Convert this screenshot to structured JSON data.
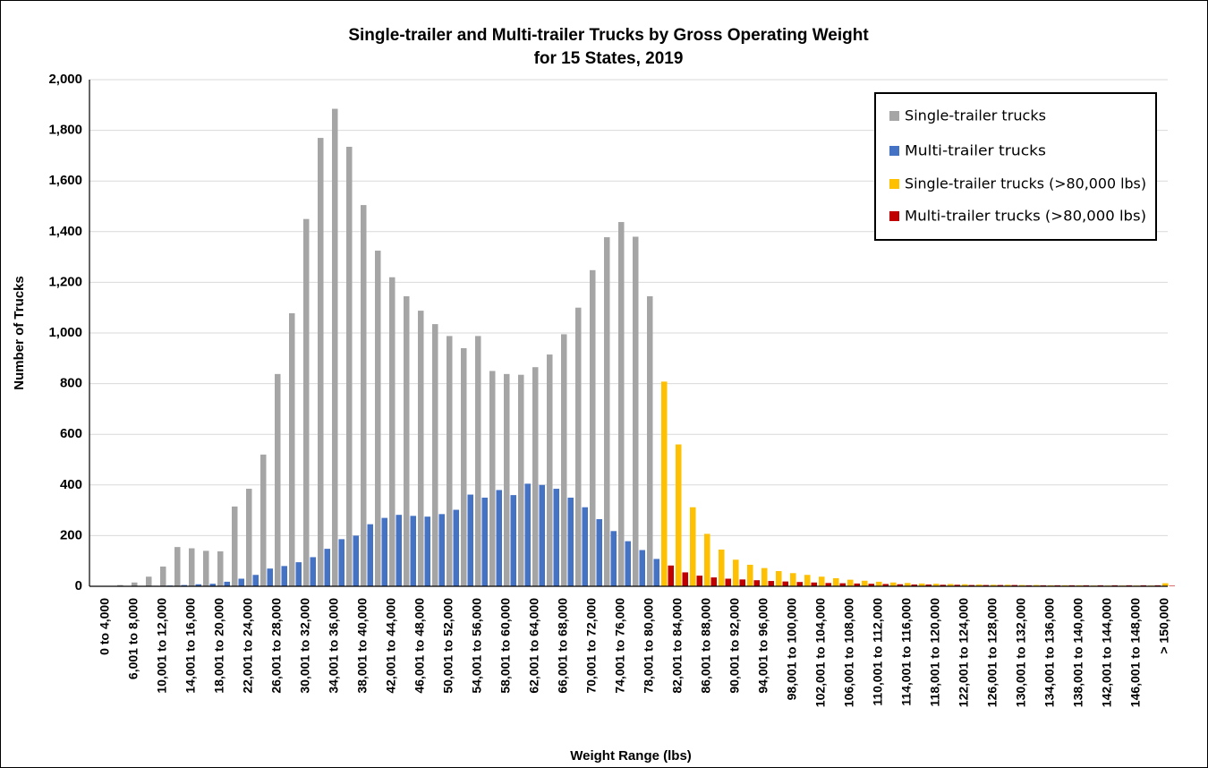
{
  "chart_data": {
    "type": "bar",
    "title": [
      "Single-trailer and Multi-trailer Trucks by Gross Operating Weight",
      "for 15 States, 2019"
    ],
    "x_label": "Weight Range (lbs)",
    "y_label": "Number of Trucks",
    "categories": [
      "0 to 4,000",
      null,
      "6,001 to 8,000",
      null,
      "10,001 to 12,000",
      null,
      "14,001 to 16,000",
      null,
      "18,001 to 20,000",
      null,
      "22,001 to 24,000",
      null,
      "26,001 to 28,000",
      null,
      "30,001 to 32,000",
      null,
      "34,001 to 36,000",
      null,
      "38,001 to 40,000",
      null,
      "42,001 to 44,000",
      null,
      "46,001 to 48,000",
      null,
      "50,001 to 52,000",
      null,
      "54,001 to 56,000",
      null,
      "58,001 to 60,000",
      null,
      "62,001 to 64,000",
      null,
      "66,001 to 68,000",
      null,
      "70,001 to 72,000",
      null,
      "74,001 to 76,000",
      null,
      "78,001 to 80,000",
      null,
      "82,001 to 84,000",
      null,
      "86,001 to 88,000",
      null,
      "90,001 to 92,000",
      null,
      "94,001 to 96,000",
      null,
      "98,001 to 100,000",
      null,
      "102,001 to 104,000",
      null,
      "106,001 to 108,000",
      null,
      "110,001 to 112,000",
      null,
      "114,001 to 116,000",
      null,
      "118,001 to 120,000",
      null,
      "122,001 to 124,000",
      null,
      "126,001 to 128,000",
      null,
      "130,001 to 132,000",
      null,
      "134,001 to 136,000",
      null,
      "138,001 to 140,000",
      null,
      "142,001 to 144,000",
      null,
      "146,001 to 148,000",
      null,
      "> 150,000"
    ],
    "series": [
      {
        "name": "Single-trailer trucks",
        "color": "#a5a5a5",
        "values": [
          1,
          5,
          15,
          38,
          78,
          155,
          150,
          140,
          138,
          315,
          385,
          520,
          838,
          1078,
          1450,
          1770,
          1885,
          1735,
          1505,
          1325,
          1220,
          1145,
          1088,
          1035,
          988,
          940,
          988,
          850,
          838,
          835,
          865,
          915,
          995,
          1100,
          1248,
          1378,
          1438,
          1380,
          1145,
          null,
          null,
          null,
          null,
          null,
          null,
          null,
          null,
          null,
          null,
          null,
          null,
          null,
          null,
          null,
          null,
          null,
          null,
          null,
          null,
          null,
          null,
          null,
          null,
          null,
          null,
          null,
          null,
          null,
          null,
          null,
          null,
          null,
          null,
          null,
          null
        ]
      },
      {
        "name": "Multi-trailer trucks",
        "color": "#4472c4",
        "values": [
          0,
          0,
          1,
          2,
          3,
          5,
          8,
          10,
          18,
          30,
          45,
          70,
          80,
          95,
          115,
          148,
          186,
          200,
          245,
          270,
          282,
          278,
          275,
          285,
          302,
          362,
          350,
          380,
          360,
          405,
          400,
          385,
          350,
          312,
          265,
          218,
          178,
          143,
          108,
          null,
          null,
          null,
          null,
          null,
          null,
          null,
          null,
          null,
          null,
          null,
          null,
          null,
          null,
          null,
          null,
          null,
          null,
          null,
          null,
          null,
          null,
          null,
          null,
          null,
          null,
          null,
          null,
          null,
          null,
          null,
          null,
          null,
          null,
          null,
          null
        ]
      },
      {
        "name": "Single-trailer trucks (>80,000 lbs)",
        "color": "#ffc000",
        "values": [
          null,
          null,
          null,
          null,
          null,
          null,
          null,
          null,
          null,
          null,
          null,
          null,
          null,
          null,
          null,
          null,
          null,
          null,
          null,
          null,
          null,
          null,
          null,
          null,
          null,
          null,
          null,
          null,
          null,
          null,
          null,
          null,
          null,
          null,
          null,
          null,
          null,
          null,
          null,
          808,
          560,
          312,
          207,
          145,
          105,
          85,
          72,
          60,
          52,
          45,
          38,
          32,
          26,
          22,
          18,
          15,
          13,
          11,
          10,
          9,
          8,
          7,
          6,
          6,
          5,
          5,
          4,
          4,
          4,
          3,
          3,
          3,
          3,
          3,
          12
        ]
      },
      {
        "name": "Multi-trailer trucks (>80,000 lbs)",
        "color": "#c00000",
        "values": [
          null,
          null,
          null,
          null,
          null,
          null,
          null,
          null,
          null,
          null,
          null,
          null,
          null,
          null,
          null,
          null,
          null,
          null,
          null,
          null,
          null,
          null,
          null,
          null,
          null,
          null,
          null,
          null,
          null,
          null,
          null,
          null,
          null,
          null,
          null,
          null,
          null,
          null,
          null,
          82,
          55,
          42,
          35,
          30,
          27,
          24,
          21,
          19,
          17,
          15,
          13,
          12,
          11,
          10,
          9,
          8,
          7,
          7,
          6,
          6,
          5,
          5,
          5,
          5,
          4,
          4,
          4,
          4,
          4,
          4,
          4,
          4,
          4,
          4,
          2
        ]
      }
    ],
    "ylim": [
      0,
      2000
    ],
    "yticks": [
      0,
      200,
      400,
      600,
      800,
      {
        "value": 1000,
        "label": "1,000"
      },
      {
        "value": 1200,
        "label": "1,200"
      },
      {
        "value": 1400,
        "label": "1,400"
      },
      {
        "value": 1600,
        "label": "1,600"
      },
      {
        "value": 1800,
        "label": "1,800"
      },
      {
        "value": 2000,
        "label": "2,000"
      }
    ],
    "grid": true,
    "legend": "upper right"
  }
}
